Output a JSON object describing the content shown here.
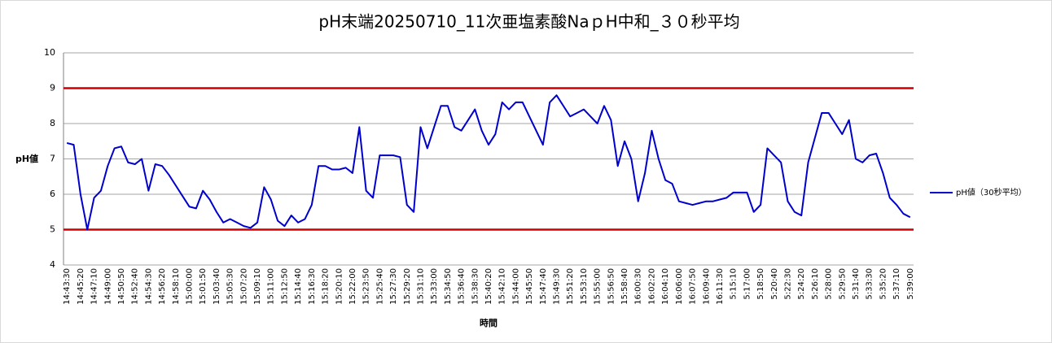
{
  "chart_data": {
    "type": "line",
    "title": "pH末端20250710_11次亜塩素酸NaｐH中和_３０秒平均",
    "x_label": "時間",
    "y_label": "pH値",
    "categories": [
      "14:43:30",
      null,
      "14:45:20",
      null,
      "14:47:10",
      null,
      "14:49:00",
      null,
      "14:50:50",
      null,
      "14:52:40",
      null,
      "14:54:30",
      null,
      "14:56:20",
      null,
      "14:58:10",
      null,
      "15:00:00",
      null,
      "15:01:50",
      null,
      "15:03:40",
      null,
      "15:05:30",
      null,
      "15:07:20",
      null,
      "15:09:10",
      null,
      "15:11:00",
      null,
      "15:12:50",
      null,
      "15:14:40",
      null,
      "15:16:30",
      null,
      "15:18:20",
      null,
      "15:20:10",
      null,
      "15:22:00",
      null,
      "15:23:50",
      null,
      "15:25:40",
      null,
      "15:27:30",
      null,
      "15:29:20",
      null,
      "15:31:10",
      null,
      "15:33:00",
      null,
      "15:34:50",
      null,
      "15:36:40",
      null,
      "15:38:30",
      null,
      "15:40:20",
      null,
      "15:42:10",
      null,
      "15:44:00",
      null,
      "15:45:50",
      null,
      "15:47:40",
      null,
      "15:49:30",
      null,
      "15:51:20",
      null,
      "15:53:10",
      null,
      "15:55:00",
      null,
      "15:56:50",
      null,
      "15:58:40",
      null,
      "16:00:30",
      null,
      "16:02:20",
      null,
      "16:04:10",
      null,
      "16:06:00",
      null,
      "16:07:50",
      null,
      "16:09:40",
      null,
      "16:11:30",
      null,
      "5:15:10",
      null,
      "5:17:00",
      null,
      "5:18:50",
      null,
      "5:20:40",
      null,
      "5:22:30",
      null,
      "5:24:20",
      null,
      "5:26:10",
      null,
      "5:28:00",
      null,
      "5:29:50",
      null,
      "5:31:40",
      null,
      "5:33:30",
      null,
      "5:35:20",
      null,
      "5:37:10",
      null,
      "5:39:00"
    ],
    "series": [
      {
        "name": "pH値（30秒平均）",
        "color": "#0000cc",
        "values": [
          7.45,
          7.4,
          6.0,
          5.0,
          5.9,
          6.1,
          6.8,
          7.3,
          7.35,
          6.9,
          6.85,
          7.0,
          6.1,
          6.85,
          6.8,
          6.55,
          6.25,
          5.95,
          5.65,
          5.6,
          6.1,
          5.85,
          5.5,
          5.2,
          5.3,
          5.2,
          5.1,
          5.05,
          5.2,
          6.2,
          5.85,
          5.25,
          5.1,
          5.4,
          5.2,
          5.3,
          5.7,
          6.8,
          6.8,
          6.7,
          6.7,
          6.75,
          6.6,
          7.9,
          6.1,
          5.9,
          7.1,
          7.1,
          7.1,
          7.05,
          5.7,
          5.5,
          7.9,
          7.3,
          7.9,
          8.5,
          8.5,
          7.9,
          7.8,
          8.1,
          8.4,
          7.8,
          7.4,
          7.7,
          8.6,
          8.4,
          8.6,
          8.6,
          8.2,
          7.8,
          7.4,
          8.6,
          8.8,
          8.5,
          8.2,
          8.3,
          8.4,
          8.2,
          8.0,
          8.5,
          8.1,
          6.8,
          7.5,
          7.0,
          5.8,
          6.6,
          7.8,
          7.0,
          6.4,
          6.3,
          5.8,
          5.75,
          5.7,
          5.75,
          5.8,
          5.8,
          5.85,
          5.9,
          6.05,
          6.05,
          6.05,
          5.5,
          5.7,
          7.3,
          7.1,
          6.9,
          5.8,
          5.5,
          5.4,
          6.9,
          7.6,
          8.3,
          8.3,
          8.0,
          7.7,
          8.1,
          7.0,
          6.9,
          7.1,
          7.15,
          6.6,
          5.9,
          5.7,
          5.45,
          5.35
        ]
      }
    ],
    "reference_lines": [
      9,
      5
    ],
    "reference_color": "#cc0000",
    "ylim": [
      4,
      10
    ],
    "yticks": [
      4,
      5,
      6,
      7,
      8,
      9,
      10
    ],
    "grid": true,
    "legend": "right"
  }
}
